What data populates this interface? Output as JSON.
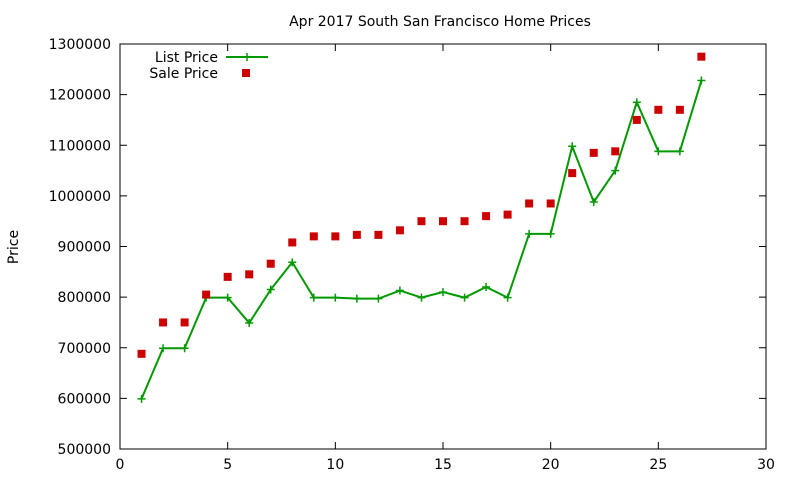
{
  "chart_data": {
    "type": "line",
    "title": "Apr 2017 South San Francisco Home Prices",
    "xlabel": "",
    "ylabel": "Price",
    "xlim": [
      0,
      30
    ],
    "ylim": [
      500000,
      1300000
    ],
    "xticks": [
      0,
      5,
      10,
      15,
      20,
      25,
      30
    ],
    "yticks": [
      500000,
      600000,
      700000,
      800000,
      900000,
      1000000,
      1100000,
      1200000,
      1300000
    ],
    "grid": false,
    "legend_position": "top-left",
    "series": [
      {
        "name": "List Price",
        "style": "line-with-plus-markers",
        "color": "#009900",
        "x": [
          1,
          2,
          3,
          4,
          5,
          6,
          7,
          8,
          9,
          10,
          11,
          12,
          13,
          14,
          15,
          16,
          17,
          18,
          19,
          20,
          21,
          22,
          23,
          24,
          25,
          26,
          27
        ],
        "values": [
          599000,
          699000,
          699000,
          799000,
          799000,
          749000,
          815000,
          869000,
          799000,
          799000,
          797000,
          797000,
          813000,
          799000,
          810000,
          799000,
          820000,
          799000,
          925000,
          925000,
          1098000,
          988000,
          1050000,
          1185000,
          1088000,
          1088000,
          1228000
        ]
      },
      {
        "name": "Sale Price",
        "style": "square-markers",
        "color": "#cc0000",
        "x": [
          1,
          2,
          3,
          4,
          5,
          6,
          7,
          8,
          9,
          10,
          11,
          12,
          13,
          14,
          15,
          16,
          17,
          18,
          19,
          20,
          21,
          22,
          23,
          24,
          25,
          26,
          27
        ],
        "values": [
          688000,
          750000,
          750000,
          805000,
          840000,
          845000,
          866000,
          908000,
          920000,
          920000,
          923000,
          923000,
          932000,
          950000,
          950000,
          950000,
          960000,
          963000,
          985000,
          985000,
          1045000,
          1085000,
          1088000,
          1150000,
          1170000,
          1170000,
          1275000
        ]
      }
    ]
  }
}
